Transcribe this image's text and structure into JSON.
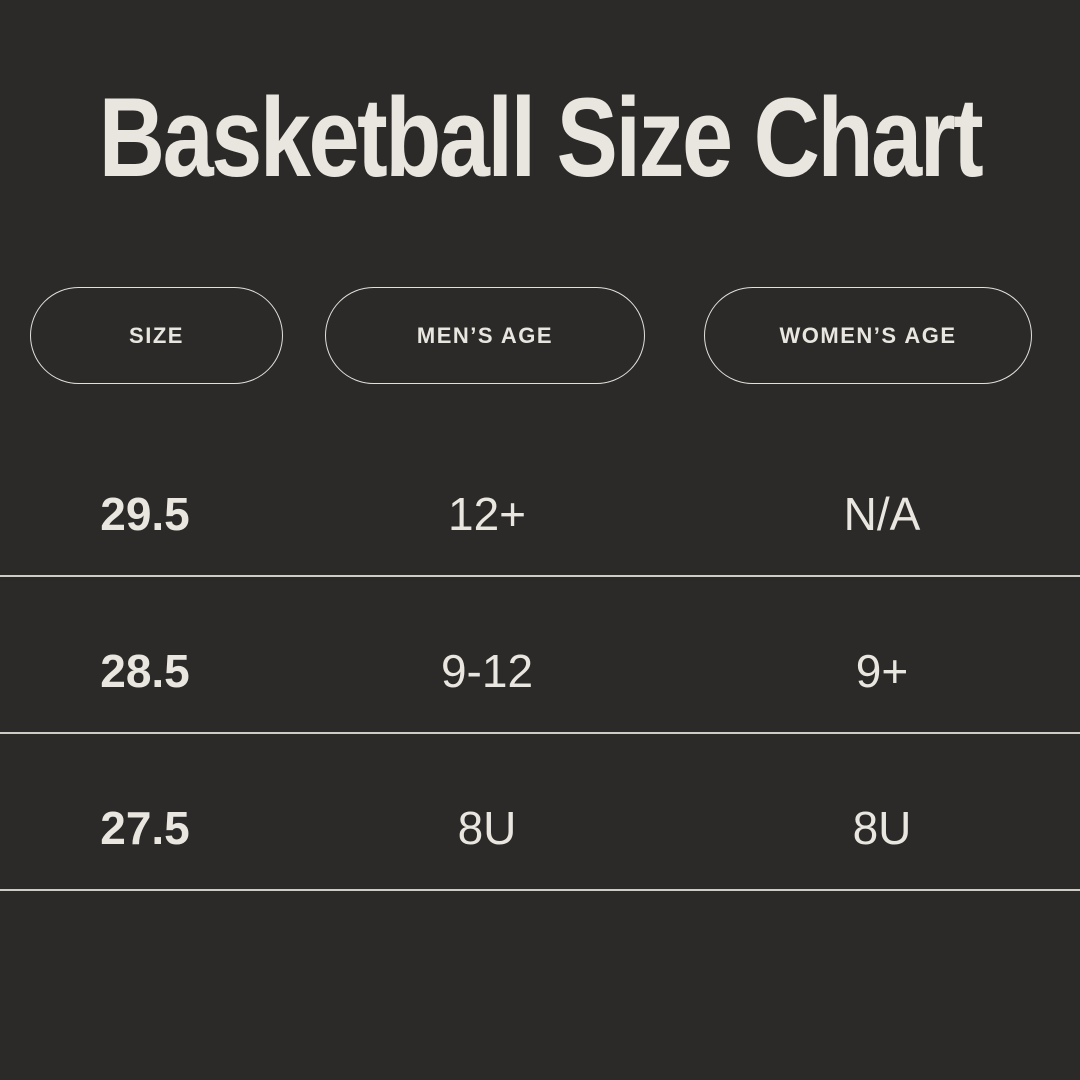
{
  "colors": {
    "background": "#2b2a29",
    "text": "#e9e6e0",
    "divider": "#cfccc6",
    "pill_border": "#e3e0da"
  },
  "chart_data": {
    "type": "table",
    "title": "Basketball Size Chart",
    "columns": [
      "SIZE",
      "MEN’S AGE",
      "WOMEN’S AGE"
    ],
    "rows": [
      [
        "29.5",
        "12+",
        "N/A"
      ],
      [
        "28.5",
        "9-12",
        "9+"
      ],
      [
        "27.5",
        "8U",
        "8U"
      ]
    ],
    "layout": {
      "legend": "none",
      "grid": "horizontal-dividers-only",
      "header_style": "outlined-pills"
    }
  }
}
